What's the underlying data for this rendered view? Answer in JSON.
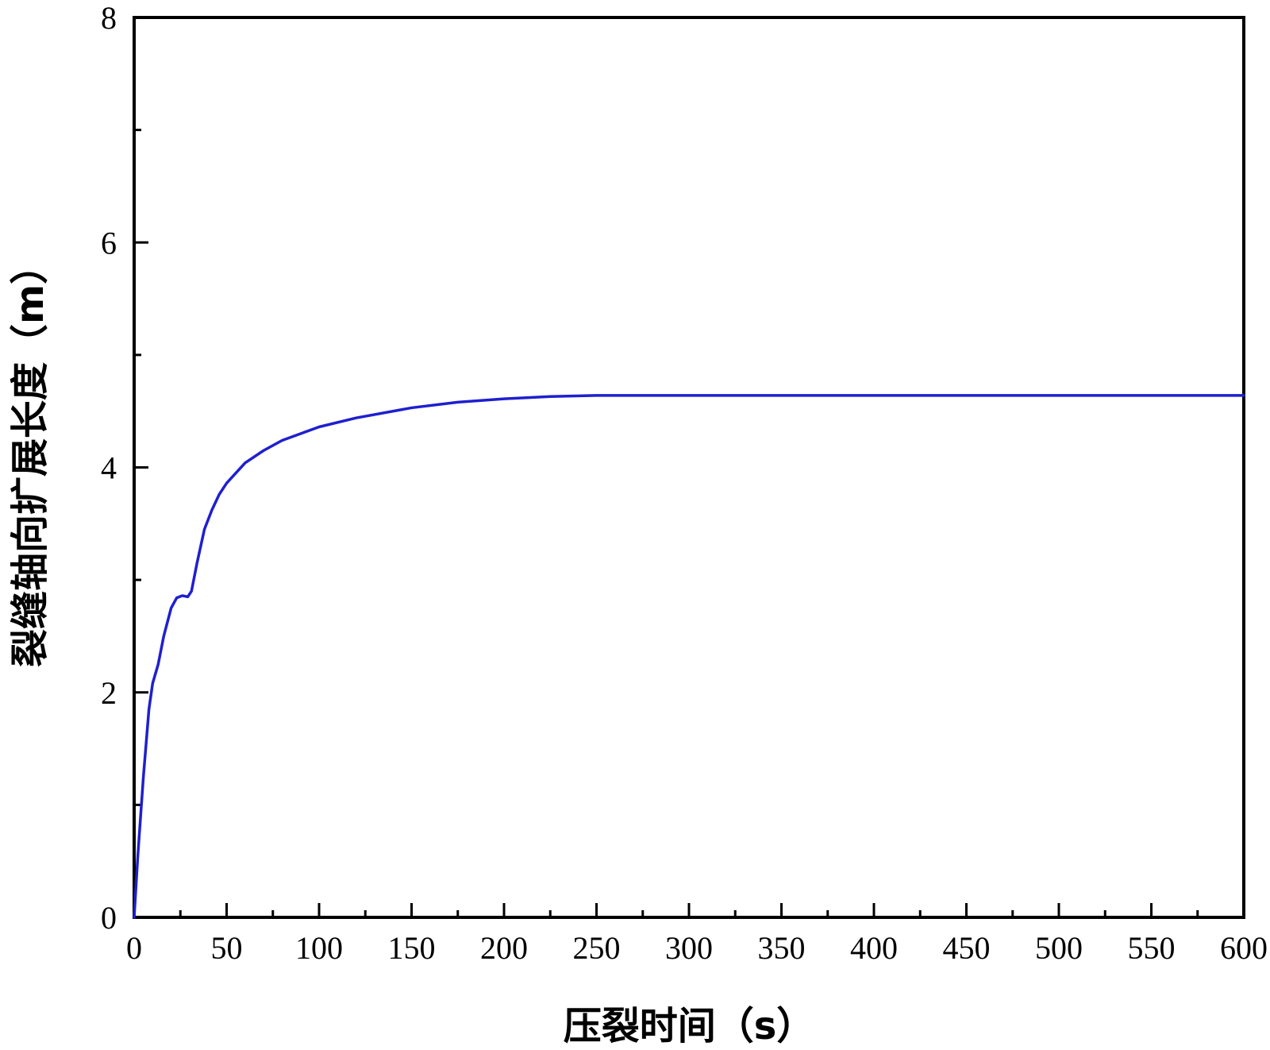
{
  "chart_data": {
    "type": "line",
    "xlabel": "压裂时间（s）",
    "ylabel": "裂缝轴向扩展长度（m）",
    "xlim": [
      0,
      600
    ],
    "ylim": [
      0,
      8
    ],
    "x_ticks": [
      0,
      50,
      100,
      150,
      200,
      250,
      300,
      350,
      400,
      450,
      500,
      550,
      600
    ],
    "y_ticks": [
      0,
      2,
      4,
      6,
      8
    ],
    "x_minor_step": 25,
    "y_minor_step": 1,
    "grid": false,
    "series": [
      {
        "color": "#1f1fd0",
        "x": [
          0,
          2,
          5,
          8,
          10,
          13,
          16,
          20,
          23,
          26,
          29,
          31,
          34,
          38,
          42,
          46,
          50,
          60,
          70,
          80,
          90,
          100,
          120,
          150,
          175,
          200,
          225,
          250,
          300,
          400,
          500,
          600
        ],
        "y": [
          0,
          0.55,
          1.25,
          1.85,
          2.08,
          2.25,
          2.5,
          2.75,
          2.84,
          2.86,
          2.85,
          2.9,
          3.15,
          3.45,
          3.62,
          3.76,
          3.86,
          4.04,
          4.15,
          4.24,
          4.3,
          4.36,
          4.44,
          4.53,
          4.58,
          4.61,
          4.63,
          4.64,
          4.64,
          4.64,
          4.64,
          4.64
        ]
      }
    ]
  }
}
